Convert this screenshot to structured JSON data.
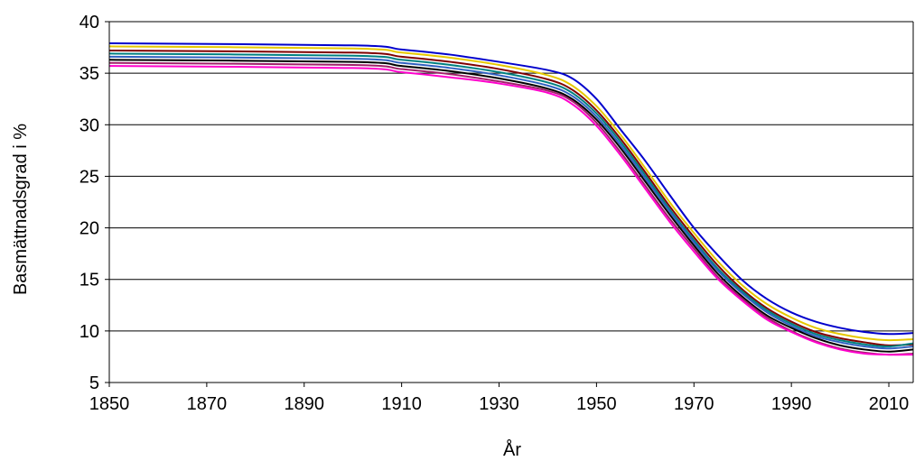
{
  "chart_data": {
    "type": "line",
    "title": "",
    "xlabel": "År",
    "ylabel": "Basmättnadsgrad i %",
    "xlim": [
      1850,
      2015
    ],
    "ylim": [
      5,
      40
    ],
    "x_ticks": [
      1850,
      1870,
      1890,
      1910,
      1930,
      1950,
      1970,
      1990,
      2010
    ],
    "y_ticks": [
      5,
      10,
      15,
      20,
      25,
      30,
      35,
      40
    ],
    "grid": "horizontal",
    "legend": "none",
    "x": [
      1850,
      1900,
      1910,
      1920,
      1930,
      1940,
      1945,
      1950,
      1955,
      1960,
      1965,
      1970,
      1975,
      1980,
      1985,
      1990,
      1995,
      2000,
      2005,
      2010,
      2015
    ],
    "series": [
      {
        "color": "#0000cc",
        "values": [
          37.9,
          37.7,
          37.3,
          36.8,
          36.1,
          35.3,
          34.5,
          32.5,
          29.5,
          26.5,
          23.2,
          20.0,
          17.3,
          14.9,
          13.1,
          11.8,
          10.9,
          10.3,
          9.9,
          9.7,
          9.8
        ]
      },
      {
        "color": "#e6c800",
        "values": [
          37.6,
          37.4,
          37.0,
          36.5,
          35.8,
          34.8,
          33.8,
          31.8,
          29.0,
          25.8,
          22.5,
          19.5,
          16.7,
          14.4,
          12.6,
          11.3,
          10.3,
          9.7,
          9.3,
          9.1,
          9.2
        ]
      },
      {
        "color": "#800000",
        "values": [
          37.2,
          37.0,
          36.6,
          36.1,
          35.4,
          34.4,
          33.4,
          31.4,
          28.6,
          25.4,
          22.1,
          19.1,
          16.3,
          14.0,
          12.2,
          10.9,
          9.9,
          9.3,
          8.9,
          8.6,
          8.7
        ]
      },
      {
        "color": "#008080",
        "values": [
          36.9,
          36.7,
          36.3,
          35.8,
          35.1,
          34.1,
          33.1,
          31.1,
          28.3,
          25.1,
          21.8,
          18.8,
          16.0,
          13.8,
          12.0,
          10.7,
          9.7,
          9.1,
          8.7,
          8.5,
          8.8
        ]
      },
      {
        "color": "#3060c0",
        "values": [
          36.6,
          36.4,
          36.0,
          35.5,
          34.8,
          33.8,
          32.8,
          30.8,
          28.0,
          24.8,
          21.6,
          18.6,
          15.8,
          13.6,
          11.8,
          10.5,
          9.5,
          8.9,
          8.5,
          8.3,
          8.5
        ]
      },
      {
        "color": "#000000",
        "values": [
          36.3,
          36.1,
          35.7,
          35.2,
          34.5,
          33.5,
          32.5,
          30.5,
          27.7,
          24.5,
          21.3,
          18.3,
          15.5,
          13.3,
          11.5,
          10.3,
          9.3,
          8.6,
          8.2,
          8.0,
          8.2
        ]
      },
      {
        "color": "#a0206a",
        "values": [
          36.0,
          35.8,
          35.4,
          34.9,
          34.2,
          33.3,
          32.3,
          30.2,
          27.3,
          24.1,
          20.9,
          18.0,
          15.2,
          13.1,
          11.3,
          10.0,
          9.0,
          8.3,
          7.9,
          7.7,
          7.8
        ]
      },
      {
        "color": "#ff00cc",
        "values": [
          35.7,
          35.5,
          35.1,
          34.6,
          34.0,
          33.1,
          32.0,
          29.9,
          27.0,
          23.8,
          20.6,
          17.7,
          15.0,
          12.9,
          11.1,
          9.9,
          8.9,
          8.2,
          7.8,
          7.7,
          7.7
        ]
      }
    ]
  }
}
